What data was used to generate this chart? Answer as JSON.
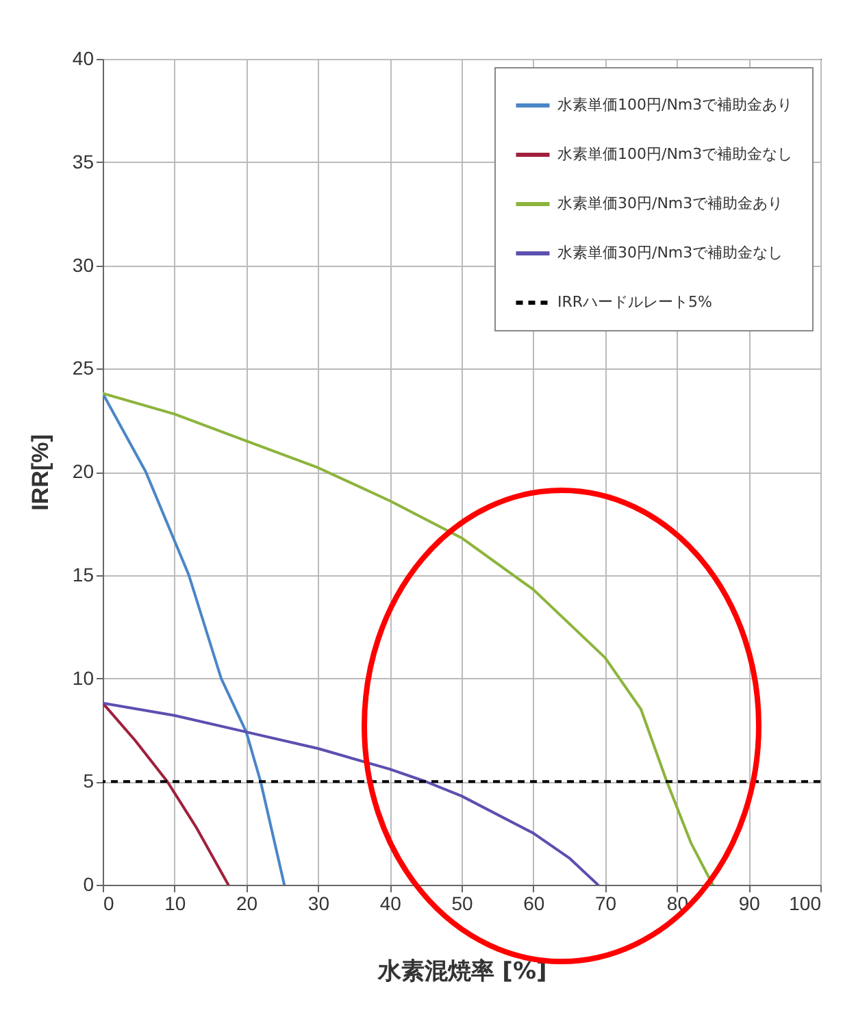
{
  "chart_data": {
    "type": "line",
    "xlabel": "水素混焼率 [%]",
    "ylabel": "IRR[%]",
    "xlim": [
      0,
      100
    ],
    "xticks": [
      0,
      10,
      20,
      30,
      40,
      50,
      60,
      70,
      80,
      90,
      100
    ],
    "ylim": [
      0,
      40
    ],
    "yticks": [
      0,
      5,
      10,
      15,
      20,
      25,
      30,
      35,
      40
    ],
    "grid": true,
    "legend": "top right",
    "line_style": "solid",
    "marker": "none",
    "series": [
      {
        "name": "水素単価100円/Nm3で補助金あり",
        "color": "#4a86c8",
        "x": [
          0,
          6,
          12,
          16.5,
          20,
          22,
          25.3
        ],
        "values": [
          23.8,
          20,
          15,
          10,
          7.4,
          5,
          0
        ]
      },
      {
        "name": "水素単価100円/Nm3で補助金なし",
        "color": "#a0203c",
        "x": [
          0,
          4.5,
          9,
          13,
          17.5
        ],
        "values": [
          8.8,
          7,
          5,
          2.8,
          0
        ]
      },
      {
        "name": "水素単価30円/Nm3で補助金あり",
        "color": "#8cb43c",
        "x": [
          0,
          10,
          20,
          30,
          40,
          50,
          60,
          70,
          75,
          78.6,
          82,
          85
        ],
        "values": [
          23.8,
          22.8,
          21.5,
          20.2,
          18.6,
          16.8,
          14.3,
          11,
          8.5,
          5,
          2,
          0
        ]
      },
      {
        "name": "水素単価30円/Nm3で補助金なし",
        "color": "#5b4fb0",
        "x": [
          0,
          10,
          20,
          30,
          40,
          45,
          50,
          60,
          65,
          69
        ],
        "values": [
          8.8,
          8.2,
          7.4,
          6.6,
          5.6,
          5,
          4.3,
          2.5,
          1.3,
          0
        ]
      }
    ],
    "ref_lines": [
      {
        "axis": "y",
        "value": 5,
        "label": "IRRハードルレート5%",
        "color": "#000000",
        "line_style": "dashed"
      }
    ]
  }
}
